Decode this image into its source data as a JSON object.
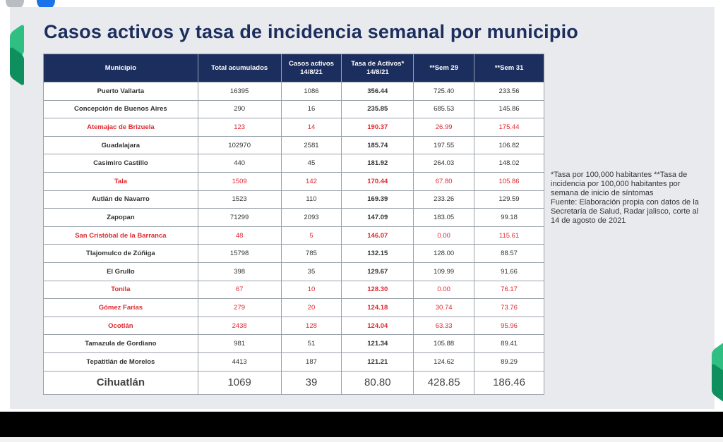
{
  "slide": {
    "title": "Casos activos y tasa de incidencia semanal por municipio",
    "note_line1": "*Tasa por 100,000 habitantes **Tasa de incidencia por 100,000 habitantes por semana de inicio de síntomas",
    "note_line2": "Fuente: Elaboración propia con datos de la Secretaría de Salud, Radar jalisco, corte al 14 de agosto de 2021"
  },
  "table": {
    "headers": [
      "Municipio",
      "Total acumulados",
      "Casos activos 14/8/21",
      "Tasa de Activos* 14/8/21",
      "**Sem 29",
      "**Sem 31"
    ],
    "rows": [
      {
        "name": "Puerto Vallarta",
        "total": "16395",
        "activos": "1086",
        "tasa": "356.44",
        "sem29": "725.40",
        "sem31": "233.56",
        "highlight": false
      },
      {
        "name": "Concepción de Buenos Aires",
        "total": "290",
        "activos": "16",
        "tasa": "235.85",
        "sem29": "685.53",
        "sem31": "145.86",
        "highlight": false
      },
      {
        "name": "Atemajac de Brizuela",
        "total": "123",
        "activos": "14",
        "tasa": "190.37",
        "sem29": "26.99",
        "sem31": "175.44",
        "highlight": true
      },
      {
        "name": "Guadalajara",
        "total": "102970",
        "activos": "2581",
        "tasa": "185.74",
        "sem29": "197.55",
        "sem31": "106.82",
        "highlight": false
      },
      {
        "name": "Casimiro Castillo",
        "total": "440",
        "activos": "45",
        "tasa": "181.92",
        "sem29": "264.03",
        "sem31": "148.02",
        "highlight": false
      },
      {
        "name": "Tala",
        "total": "1509",
        "activos": "142",
        "tasa": "170.44",
        "sem29": "67.80",
        "sem31": "105.86",
        "highlight": true
      },
      {
        "name": "Autlán de Navarro",
        "total": "1523",
        "activos": "110",
        "tasa": "169.39",
        "sem29": "233.26",
        "sem31": "129.59",
        "highlight": false
      },
      {
        "name": "Zapopan",
        "total": "71299",
        "activos": "2093",
        "tasa": "147.09",
        "sem29": "183.05",
        "sem31": "99.18",
        "highlight": false
      },
      {
        "name": "San Cristóbal de la Barranca",
        "total": "48",
        "activos": "5",
        "tasa": "146.07",
        "sem29": "0.00",
        "sem31": "115.61",
        "highlight": true
      },
      {
        "name": "Tlajomulco de Zúñiga",
        "total": "15798",
        "activos": "785",
        "tasa": "132.15",
        "sem29": "128.00",
        "sem31": "88.57",
        "highlight": false
      },
      {
        "name": "El Grullo",
        "total": "398",
        "activos": "35",
        "tasa": "129.67",
        "sem29": "109.99",
        "sem31": "91.66",
        "highlight": false
      },
      {
        "name": "Tonila",
        "total": "67",
        "activos": "10",
        "tasa": "128.30",
        "sem29": "0.00",
        "sem31": "76.17",
        "highlight": true
      },
      {
        "name": "Gómez Farías",
        "total": "279",
        "activos": "20",
        "tasa": "124.18",
        "sem29": "30.74",
        "sem31": "73.76",
        "highlight": true
      },
      {
        "name": "Ocotlán",
        "total": "2438",
        "activos": "128",
        "tasa": "124.04",
        "sem29": "63.33",
        "sem31": "95.96",
        "highlight": true
      },
      {
        "name": "Tamazula de Gordiano",
        "total": "981",
        "activos": "51",
        "tasa": "121.34",
        "sem29": "105.88",
        "sem31": "89.41",
        "highlight": false
      },
      {
        "name": "Tepatitlán de Morelos",
        "total": "4413",
        "activos": "187",
        "tasa": "121.21",
        "sem29": "124.62",
        "sem31": "89.29",
        "highlight": false
      }
    ],
    "total_row": {
      "name": "Cihuatlán",
      "total": "1069",
      "activos": "39",
      "tasa": "80.80",
      "sem29": "428.85",
      "sem31": "186.46"
    }
  },
  "colors": {
    "header_bg": "#1c2e5e",
    "highlight_text": "#e0282e",
    "accent_green": "#2fbf83"
  }
}
